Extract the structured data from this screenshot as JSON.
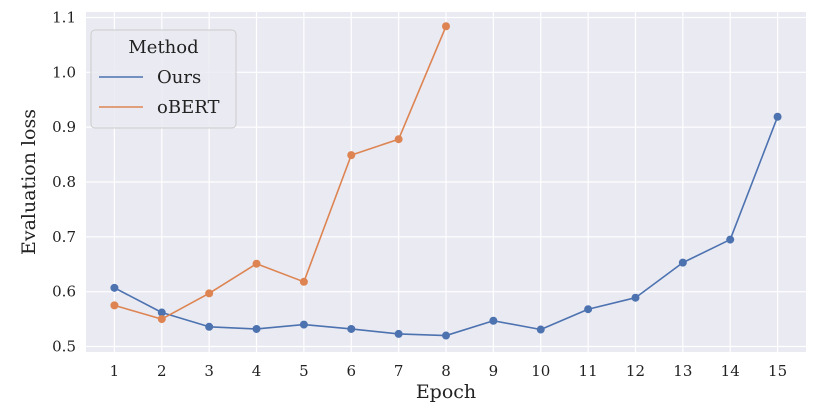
{
  "chart_data": {
    "type": "line",
    "title": "",
    "xlabel": "Epoch",
    "ylabel": "Evaluation loss",
    "x_ticks": [
      1,
      2,
      3,
      4,
      5,
      6,
      7,
      8,
      9,
      10,
      11,
      12,
      13,
      14,
      15
    ],
    "y_ticks": [
      "0.5",
      "0.6",
      "0.7",
      "0.8",
      "0.9",
      "1.0",
      "1.1"
    ],
    "xlim": [
      0.4,
      15.6
    ],
    "ylim": [
      0.49,
      1.11
    ],
    "grid": true,
    "legend": {
      "title": "Method",
      "placement": "top-left"
    },
    "series": [
      {
        "name": "Ours",
        "color": "#4c72b0",
        "x": [
          1,
          2,
          3,
          4,
          5,
          6,
          7,
          8,
          9,
          10,
          11,
          12,
          13,
          14,
          15
        ],
        "y": [
          0.607,
          0.562,
          0.536,
          0.532,
          0.54,
          0.532,
          0.523,
          0.52,
          0.547,
          0.531,
          0.568,
          0.589,
          0.653,
          0.695,
          0.919
        ]
      },
      {
        "name": "oBERT",
        "color": "#dd8452",
        "x": [
          1,
          2,
          3,
          4,
          5,
          6,
          7,
          8
        ],
        "y": [
          0.575,
          0.55,
          0.597,
          0.651,
          0.618,
          0.849,
          0.878,
          1.084
        ]
      }
    ]
  }
}
